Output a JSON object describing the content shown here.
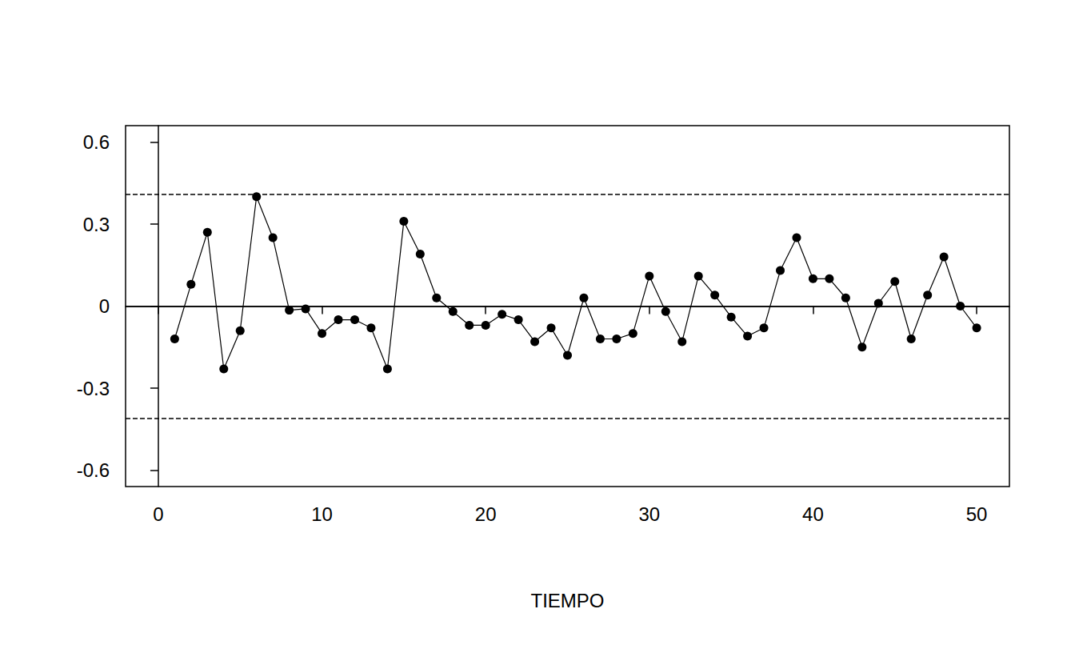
{
  "chart_data": {
    "type": "line",
    "x_label": "TIEMPO",
    "x": [
      1,
      2,
      3,
      4,
      5,
      6,
      7,
      8,
      9,
      10,
      11,
      12,
      13,
      14,
      15,
      16,
      17,
      18,
      19,
      20,
      21,
      22,
      23,
      24,
      25,
      26,
      27,
      28,
      29,
      30,
      31,
      32,
      33,
      34,
      35,
      36,
      37,
      38,
      39,
      40,
      41,
      42,
      43,
      44,
      45,
      46,
      47,
      48,
      49,
      50
    ],
    "values": [
      -0.12,
      0.08,
      0.27,
      -0.23,
      -0.09,
      0.4,
      0.25,
      -0.015,
      -0.01,
      -0.1,
      -0.05,
      -0.05,
      -0.08,
      -0.23,
      0.31,
      0.19,
      0.03,
      -0.02,
      -0.07,
      -0.07,
      -0.03,
      -0.05,
      -0.13,
      -0.08,
      -0.18,
      0.03,
      -0.12,
      -0.12,
      -0.1,
      0.11,
      -0.02,
      -0.13,
      0.11,
      0.04,
      -0.04,
      -0.11,
      -0.08,
      0.13,
      0.25,
      0.1,
      0.1,
      0.03,
      -0.15,
      0.01,
      0.09,
      -0.12,
      0.04,
      0.18,
      0.0,
      -0.08
    ],
    "color": "#000000",
    "marker": "circle",
    "line_style": "solid",
    "xlim": [
      -2,
      52
    ],
    "xticks": [
      0,
      10,
      20,
      30,
      40,
      50
    ],
    "ylim": [
      -0.66,
      0.66
    ],
    "yticks": [
      -0.6,
      -0.3,
      0,
      0.3,
      0.6
    ],
    "hlines": [
      {
        "value": 0,
        "line_style": "solid"
      },
      {
        "value": 0.41,
        "line_style": "dashed"
      },
      {
        "value": -0.41,
        "line_style": "dashed"
      }
    ],
    "grid": false
  }
}
